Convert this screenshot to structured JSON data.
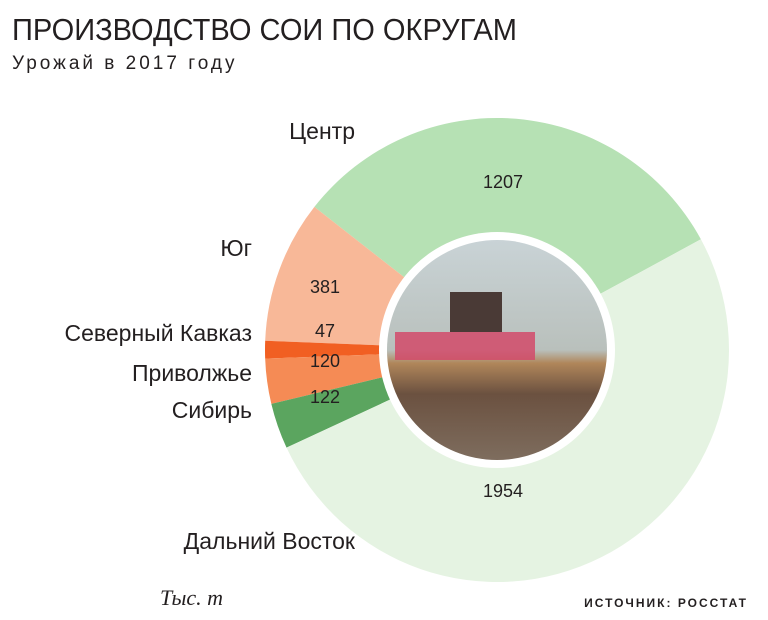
{
  "chart_data": {
    "type": "pie",
    "title": "ПРОИЗВОДСТВО СОИ ПО ОКРУГАМ",
    "subtitle": "Урожай в 2017 году",
    "unit_note": "Тыс. т",
    "source": "ИСТОЧНИК: РОССТАТ",
    "categories": [
      "Центр",
      "Юг",
      "Северный Кавказ",
      "Приволжье",
      "Сибирь",
      "Дальний Восток"
    ],
    "values": [
      1207,
      381,
      47,
      120,
      122,
      1954
    ],
    "colors": [
      "#b6e1b4",
      "#f8b898",
      "#f15f22",
      "#f58b55",
      "#5ba55f",
      "#e5f3e2"
    ]
  }
}
